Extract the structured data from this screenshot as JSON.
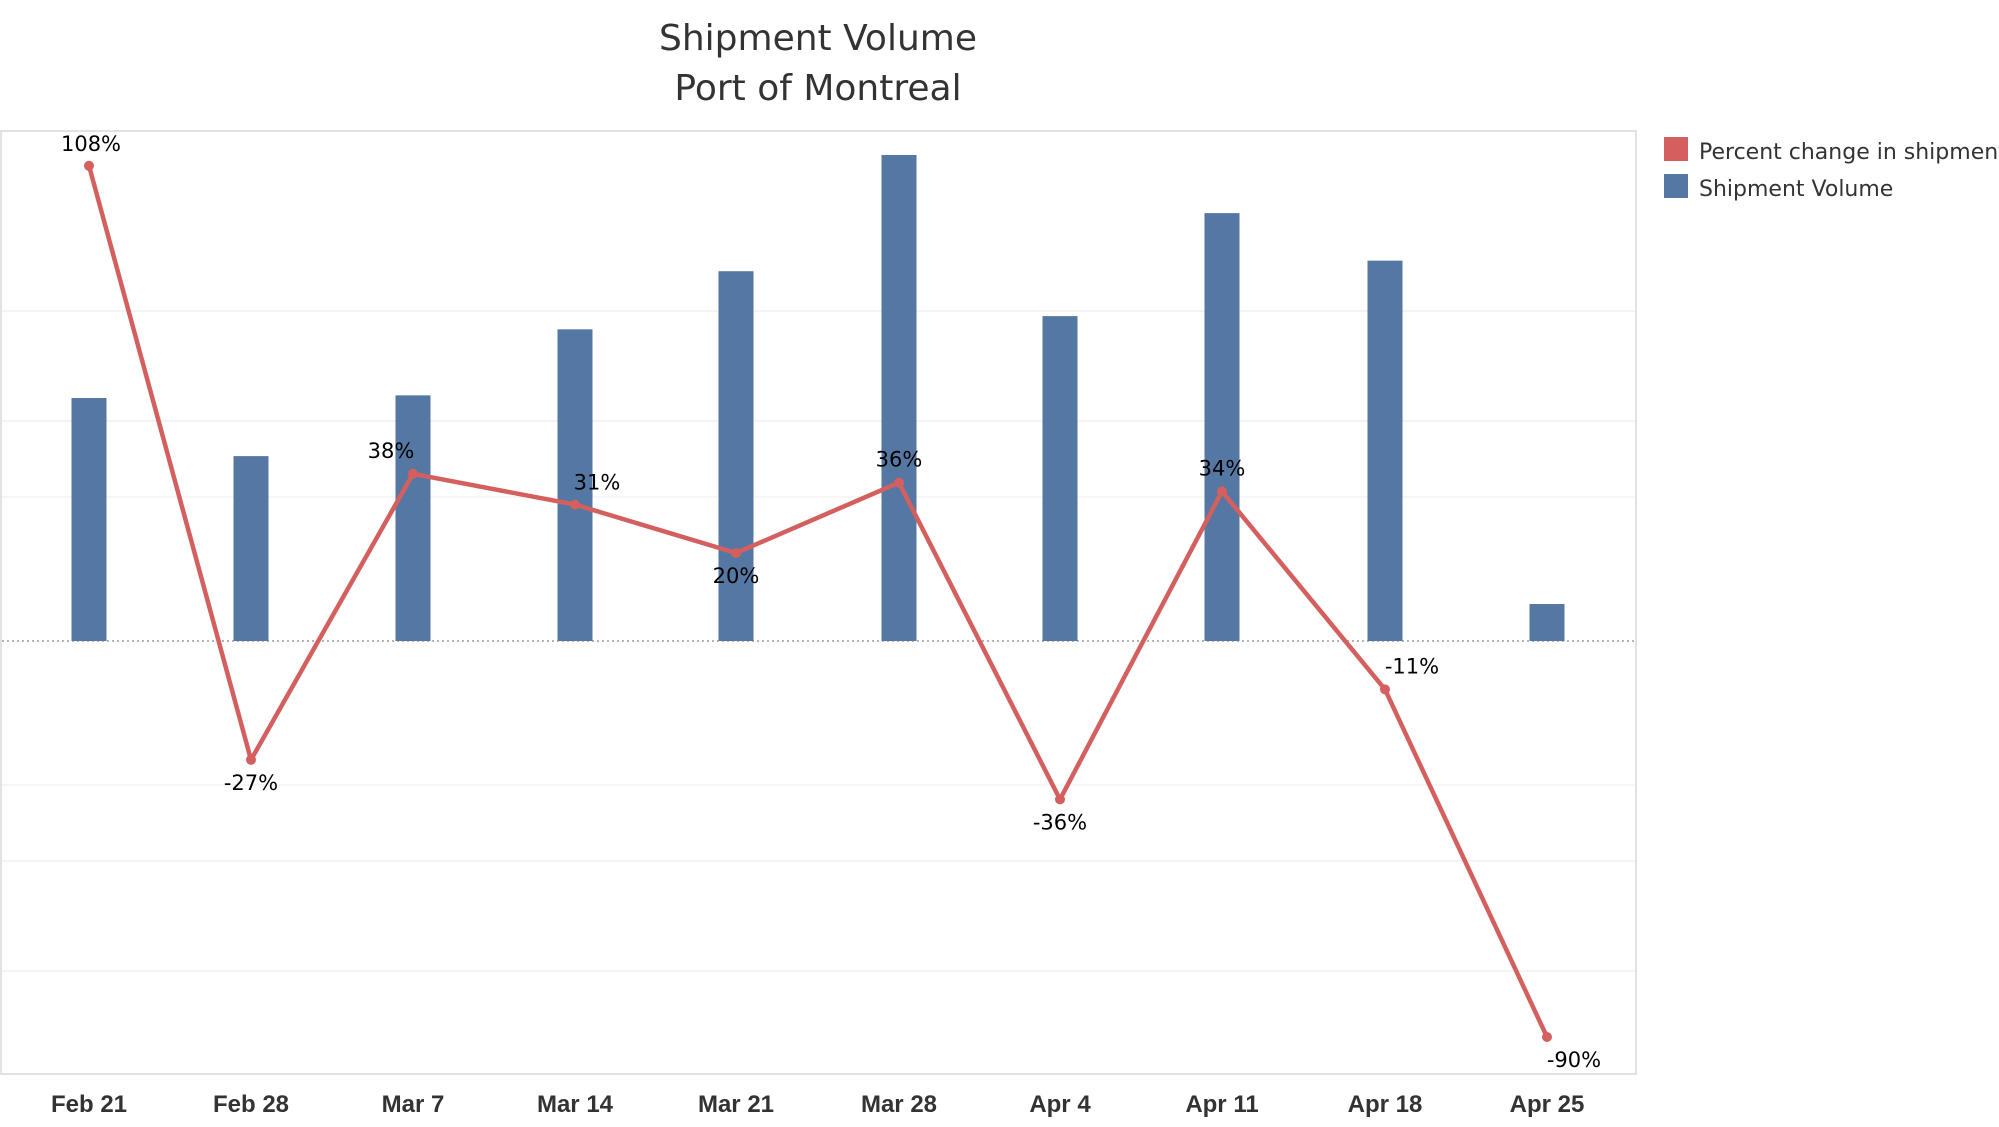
{
  "chart_data": {
    "type": "bar",
    "title": "Shipment Volume",
    "subtitle": "Port of Montreal",
    "categories": [
      "Feb 21",
      "Feb 28",
      "Mar 7",
      "Mar 14",
      "Mar 21",
      "Mar 28",
      "Apr 4",
      "Apr 11",
      "Apr 18",
      "Apr 25"
    ],
    "series": [
      {
        "name": "Shipment Volume",
        "type": "bar",
        "color": "#5577a3",
        "values": [
          46,
          35,
          46.5,
          59,
          70,
          92,
          61.5,
          81,
          72,
          7
        ],
        "axis": "relative, unlabeled"
      },
      {
        "name": "Percent change in shipments",
        "type": "line",
        "color": "#d45f5f",
        "values": [
          108,
          -27,
          38,
          31,
          20,
          36,
          -36,
          34,
          -11,
          -90
        ],
        "labels": [
          "108%",
          "-27%",
          "38%",
          "31%",
          "20%",
          "36%",
          "-36%",
          "34%",
          "-11%",
          "-90%"
        ],
        "unit": "%"
      }
    ],
    "pct_ylim": [
      -100,
      120
    ],
    "gridlines": true,
    "zero_line": "dotted",
    "legend": {
      "position": "top-right",
      "items": [
        {
          "label": "Percent change in shipments",
          "color": "#d45f5f"
        },
        {
          "label": "Shipment Volume",
          "color": "#5577a3"
        }
      ]
    }
  }
}
